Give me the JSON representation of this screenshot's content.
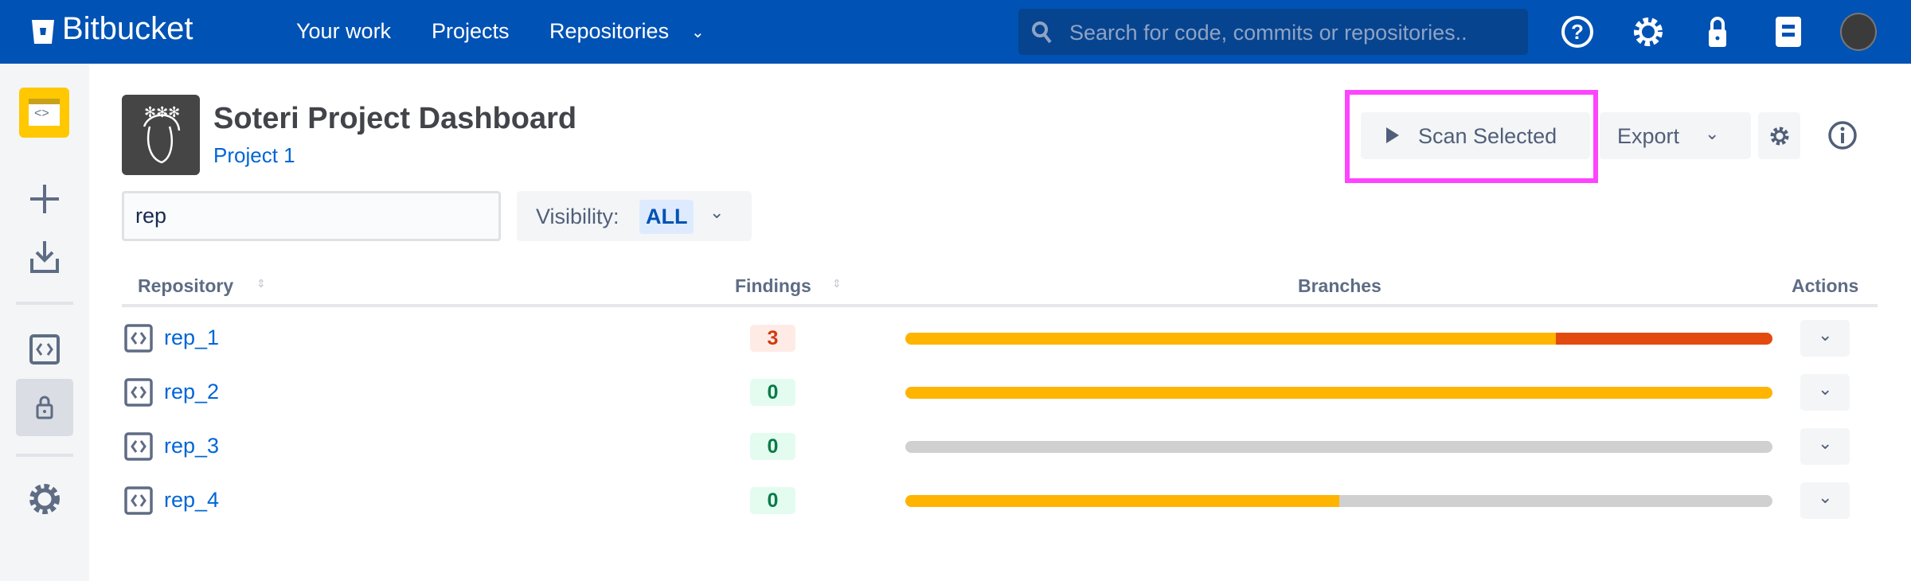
{
  "topnav": {
    "brand": "Bitbucket",
    "items": [
      "Your work",
      "Projects",
      "Repositories"
    ],
    "search_placeholder": "Search for code, commits or repositories..",
    "icons": [
      "help-icon",
      "settings-icon",
      "lock-icon",
      "notes-icon",
      "avatar"
    ]
  },
  "sidebar": {
    "icons": [
      "project-icon",
      "plus-icon",
      "download-icon",
      "code-icon",
      "lock-icon",
      "gear-icon"
    ],
    "selected": "lock-icon"
  },
  "header": {
    "title": "Soteri Project Dashboard",
    "project": "Project 1"
  },
  "toolbar": {
    "scan_label": "Scan Selected",
    "export_label": "Export"
  },
  "filter": {
    "value": "rep",
    "visibility_label": "Visibility:",
    "visibility_value": "ALL"
  },
  "table": {
    "columns": [
      "Repository",
      "Findings",
      "Branches",
      "Actions"
    ],
    "rows": [
      {
        "name": "rep_1",
        "findings": "3",
        "branches": [
          {
            "color": "#ffb400",
            "fraction": 0.75
          },
          {
            "color": "#e34a0f",
            "fraction": 0.25
          }
        ]
      },
      {
        "name": "rep_2",
        "findings": "0",
        "branches": [
          {
            "color": "#ffb400",
            "fraction": 1.0
          }
        ]
      },
      {
        "name": "rep_3",
        "findings": "0",
        "branches": []
      },
      {
        "name": "rep_4",
        "findings": "0",
        "branches": [
          {
            "color": "#ffb400",
            "fraction": 0.5
          }
        ]
      }
    ]
  },
  "colors": {
    "brand": "#0052b4",
    "link": "#0065d6",
    "highlight": "#ff44ff",
    "findings_bad": "#d13a0f",
    "findings_ok": "#0a7a48"
  }
}
